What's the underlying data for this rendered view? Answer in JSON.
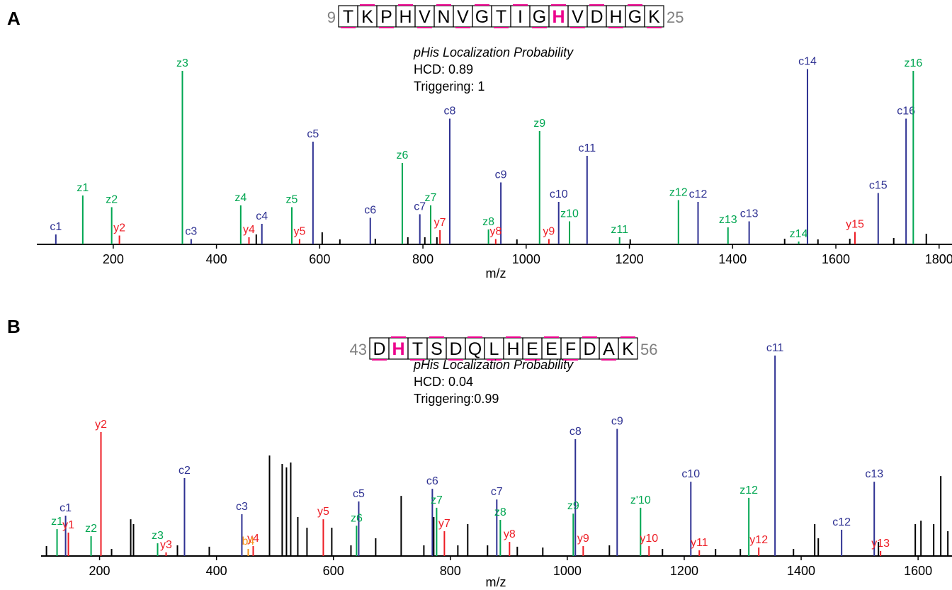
{
  "chart_data": [
    {
      "type": "spectrum",
      "panel": "A",
      "sequence": {
        "start": "9",
        "residues": [
          "T",
          "K",
          "P",
          "H",
          "V",
          "N",
          "V",
          "G",
          "T",
          "I",
          "G",
          "H",
          "V",
          "D",
          "H",
          "G",
          "K"
        ],
        "end": "25",
        "highlight": 11,
        "highlight_color": "#ec008c"
      },
      "annotation": {
        "title": "pHis Localization Probability",
        "lines": [
          "HCD: 0.89",
          "Triggering: 1"
        ]
      },
      "xlabel": "m/z",
      "xlim": [
        52,
        1825
      ],
      "xticks": [
        200,
        400,
        600,
        800,
        1000,
        1200,
        1400,
        1600,
        1800
      ],
      "ylim": [
        0,
        100
      ],
      "series": [
        {
          "color": "#2e3192",
          "labels": [
            "c1",
            "c3",
            "c4",
            "c5",
            "c6",
            "c7",
            "c8",
            "c9",
            "c10",
            "c11",
            "c12",
            "c13",
            "c14",
            "c15",
            "c16"
          ],
          "x": [
            88.8,
            351,
            488,
            587,
            698,
            794,
            852,
            951,
            1063,
            1118,
            1333,
            1432,
            1545,
            1682,
            1736
          ],
          "values": [
            5.6,
            3,
            11.6,
            58,
            15,
            17,
            71,
            35,
            24,
            50,
            24,
            13,
            99,
            29,
            71
          ]
        },
        {
          "color": "#00a651",
          "labels": [
            "z1",
            "z2",
            "z3",
            "z4",
            "z5",
            "z6",
            "z7",
            "z8",
            "z9",
            "z10",
            "z11",
            "z12",
            "z13",
            "z14",
            "z16"
          ],
          "x": [
            141,
            197,
            334,
            447,
            546,
            760,
            815,
            927,
            1026,
            1084,
            1181,
            1295,
            1391,
            1528,
            1750
          ],
          "values": [
            27.6,
            21,
            98,
            22,
            21,
            46,
            22,
            8.4,
            64,
            13,
            4,
            25,
            9.6,
            1.6,
            98
          ]
        },
        {
          "color": "#ed1c24",
          "labels": [
            "y2",
            "y4",
            "y5",
            "y7",
            "y8",
            "y9",
            "y15"
          ],
          "x": [
            212,
            463,
            561,
            833,
            941,
            1044,
            1637
          ],
          "values": [
            5,
            4,
            3,
            8,
            3,
            3,
            7
          ]
        },
        {
          "color": "#000000",
          "x": [
            477.1,
            604.8,
            639.1,
            707.7,
            770.8,
            803.7,
            827.1,
            982.1,
            1201.6,
            1500.8,
            1565.3,
            1627,
            1712.1,
            1775.2
          ],
          "values": [
            5.6,
            6.8,
            2.8,
            3.2,
            4,
            4,
            4,
            2.8,
            2.8,
            3.2,
            2.8,
            3.2,
            3.6,
            6
          ]
        }
      ]
    },
    {
      "type": "spectrum",
      "panel": "B",
      "sequence": {
        "start": "43",
        "residues": [
          "D",
          "H",
          "T",
          "S",
          "D",
          "Q",
          "L",
          "H",
          "E",
          "E",
          "F",
          "D",
          "A",
          "K"
        ],
        "end": "56",
        "highlight": 1,
        "highlight_color": "#ec008c"
      },
      "annotation": {
        "title": "pHis Localization Probability",
        "lines": [
          "HCD: 0.04",
          "Triggering:0.99"
        ]
      },
      "xlabel": "m/z",
      "xlim": [
        100,
        1658
      ],
      "xticks": [
        200,
        400,
        600,
        800,
        1000,
        1200,
        1400,
        1600
      ],
      "ylim": [
        0,
        100
      ],
      "series": [
        {
          "color": "#2e3192",
          "labels": [
            "c1",
            "c2",
            "c3",
            "c5",
            "c6",
            "c7",
            "c8",
            "c9",
            "c10",
            "c11",
            "c12",
            "c13"
          ],
          "x": [
            141.9,
            345.3,
            443.4,
            643.3,
            769.2,
            879.4,
            1013.8,
            1085.3,
            1211.3,
            1355.3,
            1469.2,
            1525
          ],
          "values": [
            20,
            38.6,
            20.7,
            27,
            33.3,
            28,
            57.9,
            63,
            36.8,
            99.3,
            13,
            36.8
          ]
        },
        {
          "color": "#00a651",
          "labels": [
            "z1",
            "z2",
            "z3",
            "z6",
            "z7",
            "z8",
            "z9",
            "z'10",
            "z12"
          ],
          "x": [
            127.3,
            185.5,
            299.3,
            639.6,
            776.5,
            885.5,
            1010.2,
            1125.3,
            1310.5
          ],
          "values": [
            13.3,
            9.8,
            6.3,
            15,
            23.9,
            17.9,
            21,
            23.9,
            28.8
          ]
        },
        {
          "color": "#ed1c24",
          "labels": [
            "y1",
            "y2",
            "y3",
            "y4",
            "y5",
            "y7",
            "y8",
            "y9",
            "y10",
            "y11",
            "y12",
            "y13"
          ],
          "x": [
            146.7,
            202.4,
            313.8,
            462.8,
            582.7,
            789.8,
            901.2,
            1027.2,
            1139.8,
            1225.8,
            1327.5,
            1535.8
          ],
          "values": [
            11.6,
            61.4,
            1.8,
            4.9,
            18.2,
            12.3,
            7,
            4.9,
            4.9,
            2.8,
            4.2,
            2.5
          ]
        },
        {
          "color": "#f7941d",
          "labels": [
            "b4"
          ],
          "x": [
            454.3
          ],
          "values": [
            3.5
          ]
        },
        {
          "color": "#000000",
          "x": [
            109.2,
            220.6,
            253.3,
            258.1,
            333.2,
            387.7,
            490.7,
            512.4,
            519.7,
            527,
            539.1,
            554.8,
            597.2,
            630,
            672.3,
            715.9,
            754.7,
            771.6,
            812.8,
            829.7,
            863.6,
            914.5,
            958.1,
            1072,
            1162.8,
            1253.6,
            1296,
            1386.9,
            1423.2,
            1429.3,
            1532.2,
            1595.2,
            1604.9,
            1626.7,
            1638.8,
            1650.9
          ],
          "values": [
            4.9,
            3.5,
            18.2,
            15.8,
            5.3,
            4.6,
            49.8,
            45.6,
            43.9,
            46.3,
            19.3,
            14,
            14,
            5.3,
            8.8,
            29.8,
            5.3,
            19.3,
            5.3,
            15.8,
            5.3,
            4.6,
            4.2,
            5.3,
            3.5,
            3.5,
            3.5,
            3.5,
            15.8,
            8.8,
            7,
            15.8,
            17.5,
            15.8,
            39.6,
            12.3
          ]
        }
      ]
    }
  ]
}
